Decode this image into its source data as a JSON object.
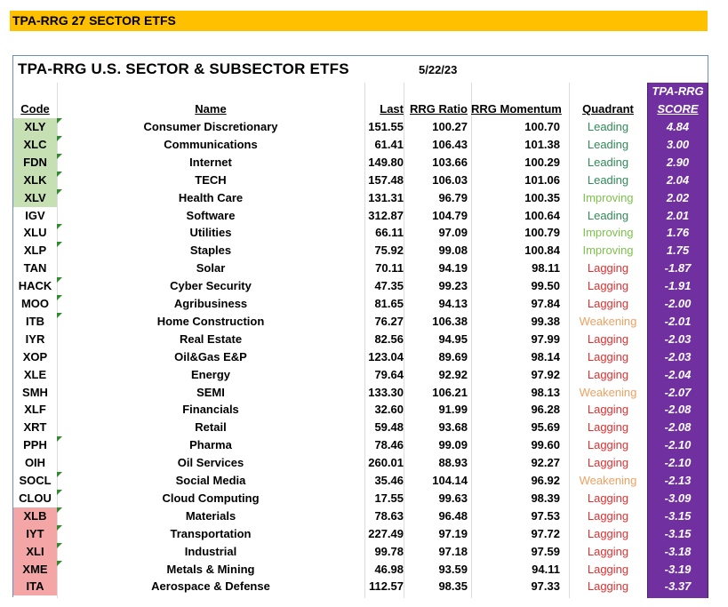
{
  "banner": "TPA-RRG 27 SECTOR ETFS",
  "title": "TPA-RRG U.S. SECTOR & SUBSECTOR ETFS",
  "date": "5/22/23",
  "score_title": "TPA-RRG",
  "headers": {
    "code": "Code",
    "name": "Name",
    "last": "Last",
    "ratio": "RRG Ratio",
    "momentum": "RRG Momentum",
    "quadrant": "Quadrant",
    "score": "SCORE"
  },
  "colors": {
    "score_bg": "#7030a0",
    "banner_bg": "#ffc000",
    "leading": "#2e8b57",
    "improving": "#7cc24a",
    "lagging": "#e03030",
    "weakening": "#f0a060",
    "code_green": "#c6e0b4",
    "code_red": "#f4a6a6"
  },
  "rows": [
    {
      "code": "XLY",
      "name": "Consumer Discretionary",
      "last": "151.55",
      "ratio": "100.27",
      "momentum": "100.70",
      "quadrant": "Leading",
      "score": "4.84",
      "code_bg": "green",
      "flag": true
    },
    {
      "code": "XLC",
      "name": "Communications",
      "last": "61.41",
      "ratio": "106.43",
      "momentum": "101.38",
      "quadrant": "Leading",
      "score": "3.00",
      "code_bg": "green",
      "flag": true
    },
    {
      "code": "FDN",
      "name": "Internet",
      "last": "149.80",
      "ratio": "103.66",
      "momentum": "100.29",
      "quadrant": "Leading",
      "score": "2.90",
      "code_bg": "green",
      "flag": true
    },
    {
      "code": "XLK",
      "name": "TECH",
      "last": "157.48",
      "ratio": "106.03",
      "momentum": "101.06",
      "quadrant": "Leading",
      "score": "2.04",
      "code_bg": "green",
      "flag": true
    },
    {
      "code": "XLV",
      "name": "Health Care",
      "last": "131.31",
      "ratio": "96.79",
      "momentum": "100.35",
      "quadrant": "Improving",
      "score": "2.02",
      "code_bg": "green",
      "flag": true
    },
    {
      "code": "IGV",
      "name": "Software",
      "last": "312.87",
      "ratio": "104.79",
      "momentum": "100.64",
      "quadrant": "Leading",
      "score": "2.01",
      "code_bg": "none",
      "flag": false
    },
    {
      "code": "XLU",
      "name": "Utilities",
      "last": "66.11",
      "ratio": "97.09",
      "momentum": "100.79",
      "quadrant": "Improving",
      "score": "1.76",
      "code_bg": "none",
      "flag": true
    },
    {
      "code": "XLP",
      "name": "Staples",
      "last": "75.92",
      "ratio": "99.08",
      "momentum": "100.84",
      "quadrant": "Improving",
      "score": "1.75",
      "code_bg": "none",
      "flag": true
    },
    {
      "code": "TAN",
      "name": "Solar",
      "last": "70.11",
      "ratio": "94.19",
      "momentum": "98.11",
      "quadrant": "Lagging",
      "score": "-1.87",
      "code_bg": "none",
      "flag": false
    },
    {
      "code": "HACK",
      "name": "Cyber Security",
      "last": "47.35",
      "ratio": "99.23",
      "momentum": "99.50",
      "quadrant": "Lagging",
      "score": "-1.91",
      "code_bg": "none",
      "flag": true
    },
    {
      "code": "MOO",
      "name": "Agribusiness",
      "last": "81.65",
      "ratio": "94.13",
      "momentum": "97.84",
      "quadrant": "Lagging",
      "score": "-2.00",
      "code_bg": "none",
      "flag": true
    },
    {
      "code": "ITB",
      "name": "Home Construction",
      "last": "76.27",
      "ratio": "106.38",
      "momentum": "99.38",
      "quadrant": "Weakening",
      "score": "-2.01",
      "code_bg": "none",
      "flag": true
    },
    {
      "code": "IYR",
      "name": "Real Estate",
      "last": "82.56",
      "ratio": "94.95",
      "momentum": "97.99",
      "quadrant": "Lagging",
      "score": "-2.03",
      "code_bg": "none",
      "flag": false
    },
    {
      "code": "XOP",
      "name": "Oil&Gas E&P",
      "last": "123.04",
      "ratio": "89.69",
      "momentum": "98.14",
      "quadrant": "Lagging",
      "score": "-2.03",
      "code_bg": "none",
      "flag": false
    },
    {
      "code": "XLE",
      "name": "Energy",
      "last": "79.64",
      "ratio": "92.92",
      "momentum": "97.92",
      "quadrant": "Lagging",
      "score": "-2.04",
      "code_bg": "none",
      "flag": false
    },
    {
      "code": "SMH",
      "name": "SEMI",
      "last": "133.30",
      "ratio": "106.21",
      "momentum": "98.13",
      "quadrant": "Weakening",
      "score": "-2.07",
      "code_bg": "none",
      "flag": false
    },
    {
      "code": "XLF",
      "name": "Financials",
      "last": "32.60",
      "ratio": "91.99",
      "momentum": "96.28",
      "quadrant": "Lagging",
      "score": "-2.08",
      "code_bg": "none",
      "flag": false
    },
    {
      "code": "XRT",
      "name": "Retail",
      "last": "59.48",
      "ratio": "93.68",
      "momentum": "95.69",
      "quadrant": "Lagging",
      "score": "-2.08",
      "code_bg": "none",
      "flag": false
    },
    {
      "code": "PPH",
      "name": "Pharma",
      "last": "78.46",
      "ratio": "99.09",
      "momentum": "99.60",
      "quadrant": "Lagging",
      "score": "-2.10",
      "code_bg": "none",
      "flag": true
    },
    {
      "code": "OIH",
      "name": "Oil Services",
      "last": "260.01",
      "ratio": "88.93",
      "momentum": "92.27",
      "quadrant": "Lagging",
      "score": "-2.10",
      "code_bg": "none",
      "flag": false
    },
    {
      "code": "SOCL",
      "name": "Social Media",
      "last": "35.46",
      "ratio": "104.14",
      "momentum": "96.92",
      "quadrant": "Weakening",
      "score": "-2.13",
      "code_bg": "none",
      "flag": true
    },
    {
      "code": "CLOU",
      "name": "Cloud Computing",
      "last": "17.55",
      "ratio": "99.63",
      "momentum": "98.39",
      "quadrant": "Lagging",
      "score": "-3.09",
      "code_bg": "none",
      "flag": true
    },
    {
      "code": "XLB",
      "name": "Materials",
      "last": "78.63",
      "ratio": "96.48",
      "momentum": "97.53",
      "quadrant": "Lagging",
      "score": "-3.15",
      "code_bg": "red",
      "flag": true
    },
    {
      "code": "IYT",
      "name": "Transportation",
      "last": "227.49",
      "ratio": "97.19",
      "momentum": "97.72",
      "quadrant": "Lagging",
      "score": "-3.15",
      "code_bg": "red",
      "flag": true
    },
    {
      "code": "XLI",
      "name": "Industrial",
      "last": "99.78",
      "ratio": "97.18",
      "momentum": "97.59",
      "quadrant": "Lagging",
      "score": "-3.18",
      "code_bg": "red",
      "flag": true
    },
    {
      "code": "XME",
      "name": "Metals & Mining",
      "last": "46.98",
      "ratio": "93.59",
      "momentum": "94.11",
      "quadrant": "Lagging",
      "score": "-3.19",
      "code_bg": "red",
      "flag": true
    },
    {
      "code": "ITA",
      "name": "Aerospace & Defense",
      "last": "112.57",
      "ratio": "98.35",
      "momentum": "97.33",
      "quadrant": "Lagging",
      "score": "-3.37",
      "code_bg": "red",
      "flag": false
    }
  ]
}
